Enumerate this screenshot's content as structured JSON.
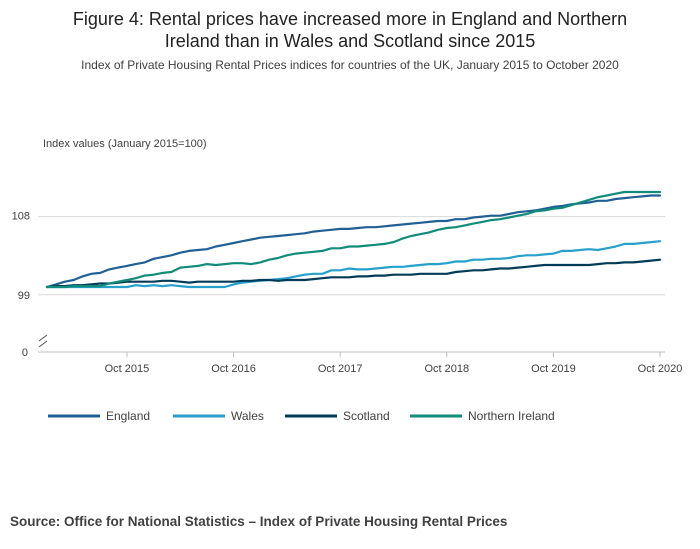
{
  "title_line1": "Figure 4: Rental prices have increased more in England and Northern",
  "title_line2": "Ireland than in Wales and Scotland since 2015",
  "subtitle": "Index of Private Housing Rental Prices indices for countries of the UK, January 2015 to October 2020",
  "source": "Source: Office for National Statistics – Index of Private Housing Rental Prices",
  "colors": {
    "england": "#206095",
    "wales": "#27a0cc",
    "scotland": "#003c57",
    "northern_ireland": "#118c7b",
    "grid": "#d9d9d9",
    "axis": "#bebebe"
  },
  "chart_data": {
    "type": "line",
    "title": "Figure 4: Rental prices have increased more in England and Northern Ireland than in Wales and Scotland since 2015",
    "subtitle": "Index of Private Housing Rental Prices indices for countries of the UK, January 2015 to October 2020",
    "ylabel": "Index values (January 2015=100)",
    "xlabel": "",
    "ylim_display": [
      0,
      110
    ],
    "y_ticks": [
      "0",
      "99",
      "108"
    ],
    "axis_break": "between 0 and 99",
    "x_start": "Jan 2015",
    "x_end": "Oct 2020",
    "x_ticks": [
      "Oct 2015",
      "Oct 2016",
      "Oct 2017",
      "Oct 2018",
      "Oct 2019",
      "Oct 2020"
    ],
    "legend_position": "bottom",
    "series": [
      {
        "name": "England",
        "key": "england",
        "values": [
          100.0,
          100.3,
          100.6,
          100.8,
          101.2,
          101.5,
          101.6,
          102.0,
          102.2,
          102.4,
          102.6,
          102.8,
          103.2,
          103.4,
          103.6,
          103.9,
          104.1,
          104.2,
          104.3,
          104.6,
          104.8,
          105.0,
          105.2,
          105.4,
          105.6,
          105.7,
          105.8,
          105.9,
          106.0,
          106.1,
          106.3,
          106.4,
          106.5,
          106.6,
          106.6,
          106.7,
          106.8,
          106.8,
          106.9,
          107.0,
          107.1,
          107.2,
          107.3,
          107.4,
          107.5,
          107.5,
          107.7,
          107.7,
          107.9,
          108.0,
          108.1,
          108.1,
          108.3,
          108.5,
          108.6,
          108.7,
          108.9,
          109.1,
          109.2,
          109.4,
          109.5,
          109.6,
          109.8,
          109.8,
          110.0,
          110.1,
          110.2,
          110.3,
          110.4,
          110.4
        ]
      },
      {
        "name": "Wales",
        "key": "wales",
        "values": [
          100.0,
          100.0,
          100.0,
          100.0,
          100.0,
          100.0,
          100.0,
          100.0,
          100.0,
          100.0,
          100.2,
          100.1,
          100.2,
          100.1,
          100.2,
          100.1,
          100.0,
          100.0,
          100.0,
          100.0,
          100.0,
          100.3,
          100.5,
          100.6,
          100.7,
          100.8,
          100.9,
          101.0,
          101.2,
          101.4,
          101.5,
          101.5,
          101.9,
          101.9,
          102.1,
          102.0,
          102.0,
          102.1,
          102.2,
          102.3,
          102.3,
          102.4,
          102.5,
          102.6,
          102.6,
          102.7,
          102.9,
          102.9,
          103.1,
          103.1,
          103.2,
          103.2,
          103.3,
          103.5,
          103.6,
          103.6,
          103.7,
          103.8,
          104.1,
          104.1,
          104.2,
          104.3,
          104.2,
          104.4,
          104.6,
          104.9,
          104.9,
          105.0,
          105.1,
          105.2
        ]
      },
      {
        "name": "Scotland",
        "key": "scotland",
        "values": [
          100.0,
          100.1,
          100.1,
          100.2,
          100.2,
          100.3,
          100.4,
          100.4,
          100.5,
          100.6,
          100.6,
          100.6,
          100.6,
          100.7,
          100.7,
          100.6,
          100.5,
          100.6,
          100.6,
          100.6,
          100.6,
          100.6,
          100.7,
          100.7,
          100.8,
          100.8,
          100.7,
          100.8,
          100.8,
          100.8,
          100.9,
          101.0,
          101.1,
          101.1,
          101.1,
          101.2,
          101.2,
          101.3,
          101.3,
          101.4,
          101.4,
          101.4,
          101.5,
          101.5,
          101.5,
          101.5,
          101.7,
          101.8,
          101.9,
          101.9,
          102.0,
          102.1,
          102.1,
          102.2,
          102.3,
          102.4,
          102.5,
          102.5,
          102.5,
          102.5,
          102.5,
          102.5,
          102.6,
          102.7,
          102.7,
          102.8,
          102.8,
          102.9,
          103.0,
          103.1
        ]
      },
      {
        "name": "Northern Ireland",
        "key": "northern_ireland",
        "values": [
          100.0,
          100.0,
          100.0,
          100.1,
          100.1,
          100.1,
          100.1,
          100.4,
          100.6,
          100.8,
          101.0,
          101.3,
          101.4,
          101.6,
          101.7,
          102.2,
          102.3,
          102.4,
          102.6,
          102.5,
          102.6,
          102.7,
          102.7,
          102.6,
          102.8,
          103.1,
          103.3,
          103.6,
          103.8,
          103.9,
          104.0,
          104.1,
          104.4,
          104.4,
          104.6,
          104.6,
          104.7,
          104.8,
          104.9,
          105.1,
          105.5,
          105.8,
          106.0,
          106.2,
          106.5,
          106.7,
          106.8,
          107.0,
          107.2,
          107.4,
          107.6,
          107.7,
          107.9,
          108.1,
          108.3,
          108.6,
          108.7,
          108.9,
          109.0,
          109.3,
          109.6,
          109.9,
          110.2,
          110.4,
          110.6,
          110.8,
          110.8,
          110.8,
          110.8,
          110.8
        ]
      }
    ]
  }
}
